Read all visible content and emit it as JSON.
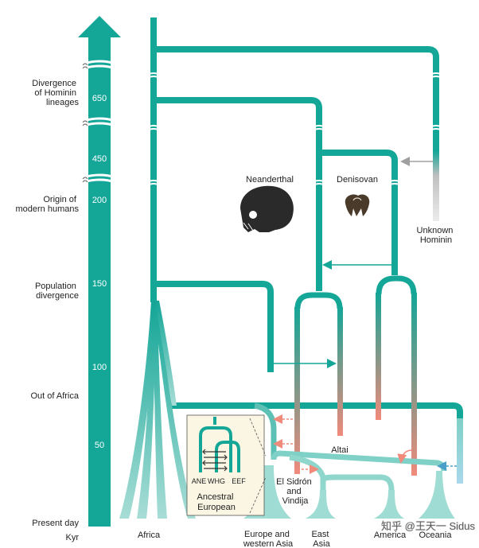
{
  "axis": {
    "unit": "Kyr",
    "events": [
      {
        "lines": [
          "Divergence",
          "of Hominin",
          "lineages"
        ]
      },
      {
        "lines": [
          "Origin of",
          "modern humans"
        ]
      },
      {
        "lines": [
          "Population",
          "divergence"
        ]
      },
      {
        "lines": [
          "Out of Africa"
        ]
      },
      {
        "lines": [
          "Present day"
        ]
      }
    ],
    "ticks": [
      "650",
      "450",
      "200",
      "150",
      "100",
      "50"
    ]
  },
  "groups": {
    "neanderthal": "Neanderthal",
    "denisovan": "Denisovan",
    "unknown": [
      "Unknown",
      "Hominin"
    ],
    "altai": "Altai",
    "el_sidron": [
      "El Sidrón",
      "and",
      "Vindija"
    ]
  },
  "populations": {
    "africa": "Africa",
    "europe": [
      "Europe and",
      "western Asia"
    ],
    "east_asia": [
      "East",
      "Asia"
    ],
    "america": "America",
    "oceania": "Oceania"
  },
  "inset": {
    "labels": [
      "ANE",
      "WHG",
      "EEF"
    ],
    "title": [
      "Ancestral",
      "European"
    ]
  },
  "watermark": "知乎 @王天一 Sidus",
  "colors": {
    "teal": "#14a697",
    "gene_flow": "#f08a7b",
    "unknown_gray": "#cfcfcf",
    "light_teal": "#7fd0c6",
    "light_blue": "#a9d8ec"
  }
}
